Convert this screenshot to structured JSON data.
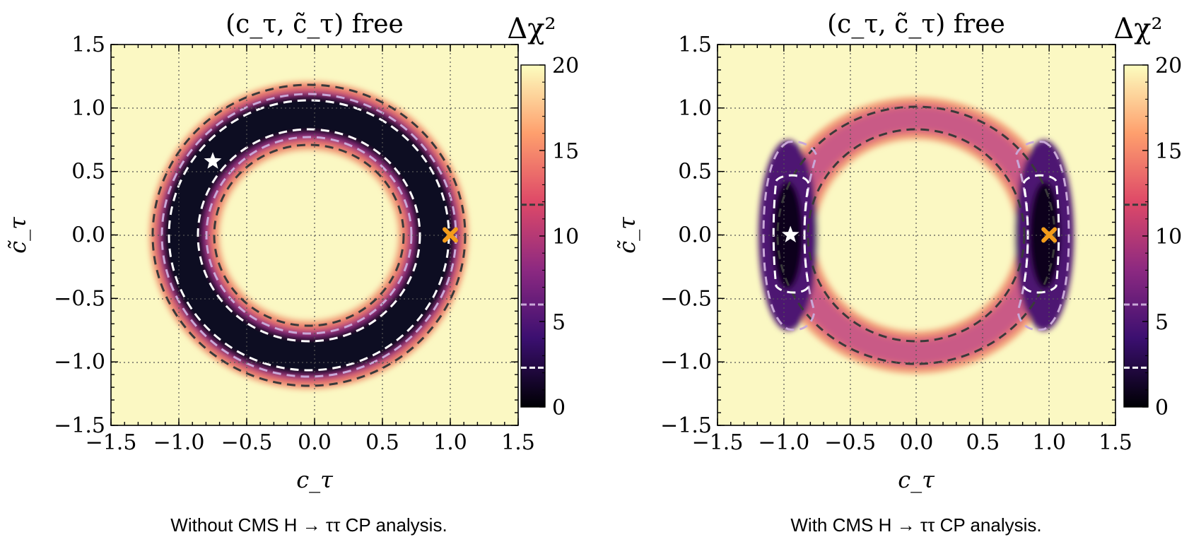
{
  "chart_data": [
    {
      "type": "heatmap",
      "title": "(c_τ, c̃_τ) free",
      "xlabel": "c_τ",
      "ylabel": "c̃_τ",
      "xlim": [
        -1.5,
        1.5
      ],
      "ylim": [
        -1.5,
        1.5
      ],
      "x_ticks": [
        "−1.5",
        "−1.0",
        "−0.5",
        "0.0",
        "0.5",
        "1.0",
        "1.5"
      ],
      "y_ticks": [
        "−1.5",
        "−1.0",
        "−0.5",
        "0.0",
        "0.5",
        "1.0",
        "1.5"
      ],
      "grid": true,
      "colorbar": {
        "label": "Δχ²",
        "range": [
          0,
          20
        ],
        "ticks": [
          "0",
          "5",
          "10",
          "15",
          "20"
        ],
        "markers": [
          2.3,
          5.99,
          11.83
        ],
        "colormap": [
          "#000004",
          "#3b0f70",
          "#8c2981",
          "#de4968",
          "#fe9f6d",
          "#fcfdbf"
        ]
      },
      "background_color": "#fbf8c3",
      "shape": "ring",
      "contours": [
        {
          "style": "white-dashed",
          "radius": 0.82
        },
        {
          "style": "white-dashed",
          "radius": 1.04
        },
        {
          "style": "light-purple-dashed",
          "radius": 0.76
        },
        {
          "style": "light-purple-dashed",
          "radius": 1.09
        },
        {
          "style": "dark-dashed",
          "radius": 0.7
        },
        {
          "style": "dark-dashed",
          "radius": 1.15
        }
      ],
      "best_fit_star": {
        "x": -0.75,
        "y": 0.58,
        "color": "#ffffff"
      },
      "sm_point": {
        "x": 1.0,
        "y": 0.0,
        "color": "#f39c1b"
      },
      "caption": "Without CMS H → ττ CP analysis."
    },
    {
      "type": "heatmap",
      "title": "(c_τ, c̃_τ) free",
      "xlabel": "c_τ",
      "ylabel": "c̃_τ",
      "xlim": [
        -1.5,
        1.5
      ],
      "ylim": [
        -1.5,
        1.5
      ],
      "x_ticks": [
        "−1.5",
        "−1.0",
        "−0.5",
        "0.0",
        "0.5",
        "1.0",
        "1.5"
      ],
      "y_ticks": [
        "−1.5",
        "−1.0",
        "−0.5",
        "0.0",
        "0.5",
        "1.0",
        "1.5"
      ],
      "grid": true,
      "colorbar": {
        "label": "Δχ²",
        "range": [
          0,
          20
        ],
        "ticks": [
          "0",
          "5",
          "10",
          "15",
          "20"
        ],
        "markers": [
          2.3,
          5.99,
          11.83
        ],
        "colormap": [
          "#000004",
          "#3b0f70",
          "#8c2981",
          "#de4968",
          "#fe9f6d",
          "#fcfdbf"
        ]
      },
      "background_color": "#fbf8c3",
      "shape": "ring with two minima at c_τ = ±0.95",
      "contours": [
        {
          "style": "white-dashed",
          "region": "islands near c_τ = ±0.95, c̃_τ ∈ [-0.4, 0.45]"
        },
        {
          "style": "light-purple-dashed",
          "region": "lobes near c_τ = ±0.85, c̃_τ ∈ [-0.72, 0.72]"
        },
        {
          "style": "dark-dashed",
          "radius": 0.8
        },
        {
          "style": "dark-dashed",
          "radius": 1.0
        }
      ],
      "best_fit_star": {
        "x": -0.95,
        "y": 0.0,
        "color": "#ffffff"
      },
      "sm_point": {
        "x": 1.0,
        "y": 0.0,
        "color": "#f39c1b"
      },
      "caption": "With CMS H → ττ CP analysis."
    }
  ]
}
